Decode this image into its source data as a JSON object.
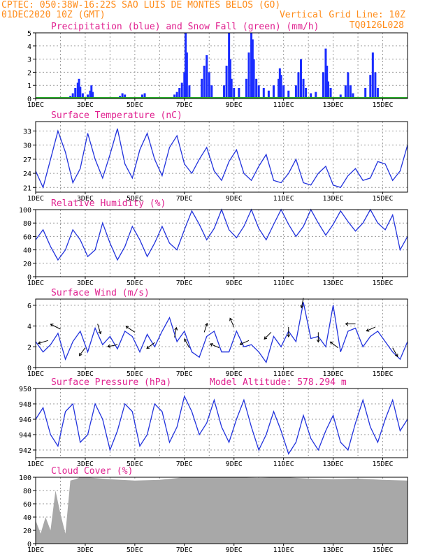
{
  "header": {
    "line1": "CPTEC:  050:38W-16:22S  SAO LUIS DE MONTES BELOS (GO)",
    "line2_left": "01DEC2020 10Z (GMT)",
    "line2_right": "Vertical Grid Line: 10Z",
    "line3_right": "TQ0126L028"
  },
  "colors": {
    "header": "#ff8c1a",
    "panel_title": "#e0208f",
    "line": "#2233dd",
    "precip": "#1a2cff",
    "snow": "#22aa22",
    "cloud": "#a8a8a8",
    "grid": "#9a9a9a"
  },
  "x_ticks": [
    "1DEC",
    "3DEC",
    "5DEC",
    "7DEC",
    "9DEC",
    "11DEC",
    "13DEC",
    "15DEC"
  ],
  "panels": [
    {
      "id": "precip",
      "title": "Precipitation (blue) and Snow Fall (green) (mm/h)",
      "yticks": [
        "0",
        "1",
        "2",
        "3",
        "4",
        "5"
      ]
    },
    {
      "id": "temp",
      "title": "Surface Temperature (nC)",
      "yticks": [
        "21",
        "24",
        "27",
        "30",
        "33"
      ]
    },
    {
      "id": "rh",
      "title": "Relative Humidity (%)",
      "yticks": [
        "0",
        "20",
        "40",
        "60",
        "80",
        "100"
      ]
    },
    {
      "id": "wind",
      "title": "Surface Wind (m/s)",
      "yticks": [
        "0",
        "2",
        "4",
        "6"
      ]
    },
    {
      "id": "pres",
      "title": "Surface Pressure (hPa)",
      "extra": "Model Altitude: 578.294 m",
      "yticks": [
        "942",
        "944",
        "946",
        "948",
        "950"
      ]
    },
    {
      "id": "cloud",
      "title": "Cloud Cover (%)",
      "yticks": [
        "0",
        "20",
        "40",
        "60",
        "80",
        "100"
      ]
    }
  ],
  "chart_data": [
    {
      "type": "bar",
      "name": "precipitation",
      "title": "Precipitation (blue) and Snow Fall (green) (mm/h)",
      "ylim": [
        0,
        5
      ],
      "x_unit": "day of Dec 2020 (10Z = grid line)",
      "bars": [
        [
          2.4,
          0.2
        ],
        [
          2.5,
          0.4
        ],
        [
          2.6,
          0.8
        ],
        [
          2.7,
          1.2
        ],
        [
          2.75,
          1.5
        ],
        [
          2.8,
          0.9
        ],
        [
          2.9,
          0.4
        ],
        [
          3.1,
          0.3
        ],
        [
          3.2,
          0.6
        ],
        [
          3.25,
          1.0
        ],
        [
          3.3,
          0.5
        ],
        [
          4.4,
          0.2
        ],
        [
          4.5,
          0.4
        ],
        [
          4.6,
          0.3
        ],
        [
          5.3,
          0.3
        ],
        [
          5.4,
          0.4
        ],
        [
          6.6,
          0.3
        ],
        [
          6.7,
          0.5
        ],
        [
          6.8,
          0.8
        ],
        [
          6.9,
          1.2
        ],
        [
          7.0,
          2.0
        ],
        [
          7.05,
          5.0
        ],
        [
          7.1,
          3.5
        ],
        [
          7.2,
          1.0
        ],
        [
          7.7,
          1.5
        ],
        [
          7.8,
          2.5
        ],
        [
          7.9,
          3.3
        ],
        [
          8.0,
          2.0
        ],
        [
          8.1,
          1.0
        ],
        [
          8.6,
          1.0
        ],
        [
          8.7,
          2.5
        ],
        [
          8.8,
          5.0
        ],
        [
          8.85,
          3.0
        ],
        [
          8.9,
          1.5
        ],
        [
          9.0,
          0.8
        ],
        [
          9.2,
          0.8
        ],
        [
          9.5,
          1.5
        ],
        [
          9.6,
          3.5
        ],
        [
          9.7,
          5.0
        ],
        [
          9.75,
          4.5
        ],
        [
          9.8,
          3.0
        ],
        [
          9.9,
          1.5
        ],
        [
          10.0,
          1.0
        ],
        [
          10.2,
          0.8
        ],
        [
          10.4,
          0.6
        ],
        [
          10.6,
          1.0
        ],
        [
          10.8,
          1.5
        ],
        [
          10.85,
          2.3
        ],
        [
          10.9,
          1.8
        ],
        [
          11.0,
          1.0
        ],
        [
          11.2,
          0.6
        ],
        [
          11.5,
          1.0
        ],
        [
          11.6,
          2.0
        ],
        [
          11.7,
          3.0
        ],
        [
          11.8,
          1.5
        ],
        [
          11.9,
          0.8
        ],
        [
          12.1,
          0.4
        ],
        [
          12.3,
          0.5
        ],
        [
          12.6,
          2.0
        ],
        [
          12.7,
          3.8
        ],
        [
          12.75,
          2.5
        ],
        [
          12.8,
          1.3
        ],
        [
          12.9,
          0.8
        ],
        [
          13.3,
          0.3
        ],
        [
          13.5,
          1.0
        ],
        [
          13.6,
          2.0
        ],
        [
          13.7,
          1.0
        ],
        [
          13.8,
          0.4
        ],
        [
          14.3,
          0.8
        ],
        [
          14.5,
          1.8
        ],
        [
          14.6,
          3.5
        ],
        [
          14.7,
          2.0
        ],
        [
          14.8,
          0.8
        ]
      ],
      "snow": 0
    },
    {
      "type": "line",
      "name": "temperature",
      "title": "Surface Temperature (nC)",
      "ylim": [
        20,
        35
      ],
      "x": [
        1.0,
        1.3,
        1.6,
        1.9,
        2.2,
        2.5,
        2.8,
        3.1,
        3.4,
        3.7,
        4.0,
        4.3,
        4.6,
        4.9,
        5.2,
        5.5,
        5.8,
        6.1,
        6.4,
        6.7,
        7.0,
        7.3,
        7.6,
        7.9,
        8.2,
        8.5,
        8.8,
        9.1,
        9.4,
        9.7,
        10.0,
        10.3,
        10.6,
        10.9,
        11.2,
        11.5,
        11.8,
        12.1,
        12.4,
        12.7,
        13.0,
        13.3,
        13.6,
        13.9,
        14.2,
        14.5,
        14.8,
        15.1,
        15.4,
        15.7,
        16.0
      ],
      "y": [
        24.5,
        21.0,
        27.0,
        33.0,
        28.5,
        22.0,
        25.0,
        32.5,
        27.0,
        23.0,
        28.0,
        33.5,
        26.0,
        23.0,
        29.0,
        32.5,
        27.0,
        23.5,
        29.5,
        32.0,
        26.0,
        24.0,
        27.0,
        29.5,
        24.5,
        22.5,
        26.5,
        29.0,
        24.0,
        22.5,
        25.5,
        28.0,
        22.5,
        22.0,
        24.0,
        27.0,
        22.0,
        21.5,
        24.0,
        25.5,
        21.5,
        21.0,
        23.5,
        25.0,
        22.5,
        23.0,
        26.5,
        26.0,
        22.5,
        24.5,
        30.0
      ]
    },
    {
      "type": "line",
      "name": "relative_humidity",
      "title": "Relative Humidity (%)",
      "ylim": [
        0,
        100
      ],
      "x": [
        1.0,
        1.3,
        1.6,
        1.9,
        2.2,
        2.5,
        2.8,
        3.1,
        3.4,
        3.7,
        4.0,
        4.3,
        4.6,
        4.9,
        5.2,
        5.5,
        5.8,
        6.1,
        6.4,
        6.7,
        7.0,
        7.3,
        7.6,
        7.9,
        8.2,
        8.5,
        8.8,
        9.1,
        9.4,
        9.7,
        10.0,
        10.3,
        10.6,
        10.9,
        11.2,
        11.5,
        11.8,
        12.1,
        12.4,
        12.7,
        13.0,
        13.3,
        13.6,
        13.9,
        14.2,
        14.5,
        14.8,
        15.1,
        15.4,
        15.7,
        16.0
      ],
      "y": [
        55,
        70,
        45,
        25,
        40,
        70,
        55,
        30,
        40,
        80,
        50,
        25,
        45,
        75,
        55,
        30,
        50,
        75,
        50,
        40,
        70,
        98,
        78,
        55,
        72,
        100,
        70,
        58,
        75,
        100,
        72,
        55,
        78,
        100,
        78,
        60,
        75,
        100,
        80,
        62,
        78,
        98,
        82,
        68,
        80,
        100,
        80,
        70,
        92,
        40,
        60
      ]
    },
    {
      "type": "line",
      "name": "surface_wind",
      "title": "Surface Wind (m/s)",
      "ylim": [
        0,
        6.6
      ],
      "x": [
        1.0,
        1.3,
        1.6,
        1.9,
        2.2,
        2.5,
        2.8,
        3.1,
        3.4,
        3.7,
        4.0,
        4.3,
        4.6,
        4.9,
        5.2,
        5.5,
        5.8,
        6.1,
        6.4,
        6.7,
        7.0,
        7.3,
        7.6,
        7.9,
        8.2,
        8.5,
        8.8,
        9.1,
        9.4,
        9.7,
        10.0,
        10.3,
        10.6,
        10.9,
        11.2,
        11.5,
        11.8,
        12.1,
        12.4,
        12.7,
        13.0,
        13.3,
        13.6,
        13.9,
        14.2,
        14.5,
        14.8,
        15.1,
        15.4,
        15.7,
        16.0
      ],
      "y": [
        2.5,
        1.5,
        2.2,
        3.3,
        0.8,
        2.5,
        3.5,
        1.5,
        3.8,
        2.2,
        3.0,
        1.8,
        3.5,
        3.0,
        1.5,
        3.2,
        2.0,
        3.5,
        4.8,
        2.5,
        3.5,
        1.5,
        1.0,
        3.0,
        3.5,
        1.5,
        1.5,
        3.5,
        2.0,
        2.2,
        1.5,
        0.5,
        3.0,
        2.0,
        3.5,
        2.5,
        6.3,
        2.8,
        3.0,
        2.0,
        6.0,
        1.5,
        3.5,
        3.8,
        2.0,
        3.0,
        3.5,
        2.5,
        1.5,
        0.8,
        2.5
      ]
    },
    {
      "type": "line",
      "name": "surface_pressure",
      "title": "Surface Pressure (hPa)",
      "ylim": [
        941,
        950
      ],
      "x": [
        1.0,
        1.3,
        1.6,
        1.9,
        2.2,
        2.5,
        2.8,
        3.1,
        3.4,
        3.7,
        4.0,
        4.3,
        4.6,
        4.9,
        5.2,
        5.5,
        5.8,
        6.1,
        6.4,
        6.7,
        7.0,
        7.3,
        7.6,
        7.9,
        8.2,
        8.5,
        8.8,
        9.1,
        9.4,
        9.7,
        10.0,
        10.3,
        10.6,
        10.9,
        11.2,
        11.5,
        11.8,
        12.1,
        12.4,
        12.7,
        13.0,
        13.3,
        13.6,
        13.9,
        14.2,
        14.5,
        14.8,
        15.1,
        15.4,
        15.7,
        16.0
      ],
      "y": [
        946,
        947.5,
        944,
        942.5,
        947,
        948,
        943,
        944,
        948,
        946,
        942,
        944.5,
        948,
        947,
        942.5,
        944,
        948,
        947,
        943,
        945,
        949,
        947,
        944,
        945.5,
        948.5,
        945,
        943,
        946,
        948.5,
        945,
        942,
        944,
        947,
        944.5,
        941.5,
        943,
        946.5,
        943.5,
        942,
        944.5,
        946.5,
        943,
        942,
        945.5,
        948.5,
        945,
        943,
        946,
        948.5,
        944.5,
        946
      ]
    },
    {
      "type": "area",
      "name": "cloud_cover",
      "title": "Cloud Cover (%)",
      "ylim": [
        0,
        100
      ],
      "x": [
        1.0,
        1.2,
        1.4,
        1.6,
        1.8,
        2.0,
        2.2,
        2.4,
        2.6,
        2.8,
        3.0,
        4.0,
        5.0,
        6.0,
        7.0,
        8.0,
        9.0,
        10.0,
        11.0,
        12.0,
        13.0,
        14.0,
        15.0,
        16.0
      ],
      "y": [
        35,
        15,
        40,
        20,
        80,
        45,
        15,
        95,
        97,
        100,
        100,
        97,
        95,
        96,
        100,
        100,
        100,
        99,
        100,
        98,
        97,
        98,
        96,
        95
      ]
    }
  ]
}
